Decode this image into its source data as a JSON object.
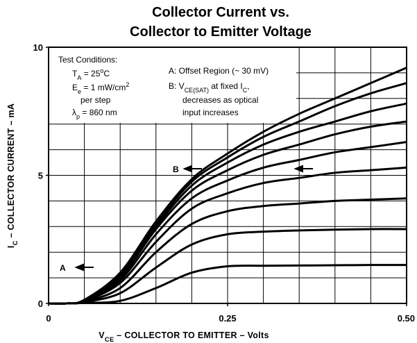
{
  "chart_data": {
    "type": "line",
    "title": [
      "Collector Current vs.",
      "Collector to Emitter Voltage"
    ],
    "xlabel": [
      {
        "text": "V"
      },
      {
        "text": "CE",
        "shift": "sub"
      },
      {
        "text": " – COLLECTOR TO EMITTER – Volts"
      }
    ],
    "ylabel": [
      {
        "text": "I"
      },
      {
        "text": "C",
        "shift": "sub"
      },
      {
        "text": " – COLLECTOR CURRENT – mA"
      }
    ],
    "xlim": [
      0,
      0.5
    ],
    "ylim": [
      0,
      10
    ],
    "xticks": [
      0,
      0.25,
      {
        "value": 0.5,
        "label": "0.50"
      }
    ],
    "yticks": [
      0,
      5,
      10
    ],
    "xgrid": [
      0.05,
      0.1,
      0.15,
      0.2,
      0.25,
      0.3,
      0.35,
      0.4,
      0.45
    ],
    "ygrid": [
      1,
      2,
      3,
      4,
      5,
      6,
      7,
      8,
      9
    ],
    "x": [
      0,
      0.025,
      0.05,
      0.1,
      0.15,
      0.2,
      0.25,
      0.3,
      0.35,
      0.4,
      0.45,
      0.5
    ],
    "series": [
      {
        "color": "#000000",
        "values": [
          0,
          0,
          0.02,
          0.1,
          0.6,
          1.2,
          1.45,
          1.47,
          1.48,
          1.49,
          1.5,
          1.5
        ]
      },
      {
        "color": "#000000",
        "values": [
          0,
          0,
          0.05,
          0.4,
          1.4,
          2.3,
          2.7,
          2.8,
          2.85,
          2.88,
          2.9,
          2.9
        ]
      },
      {
        "color": "#000000",
        "values": [
          0,
          0,
          0.07,
          0.6,
          2.0,
          3.1,
          3.6,
          3.8,
          3.9,
          4.0,
          4.05,
          4.1
        ]
      },
      {
        "color": "#000000",
        "values": [
          0,
          0,
          0.09,
          0.8,
          2.4,
          3.7,
          4.3,
          4.7,
          4.9,
          5.1,
          5.2,
          5.3
        ]
      },
      {
        "color": "#000000",
        "values": [
          0,
          0,
          0.1,
          0.9,
          2.7,
          4.1,
          4.8,
          5.3,
          5.6,
          5.9,
          6.1,
          6.3
        ]
      },
      {
        "color": "#000000",
        "values": [
          0,
          0,
          0.11,
          1.0,
          2.9,
          4.4,
          5.2,
          5.8,
          6.2,
          6.6,
          6.9,
          7.1
        ]
      },
      {
        "color": "#000000",
        "values": [
          0,
          0,
          0.12,
          1.1,
          3.0,
          4.6,
          5.5,
          6.2,
          6.7,
          7.1,
          7.5,
          7.8
        ]
      },
      {
        "color": "#000000",
        "values": [
          0,
          0,
          0.13,
          1.15,
          3.1,
          4.75,
          5.7,
          6.5,
          7.1,
          7.7,
          8.2,
          8.6
        ]
      },
      {
        "color": "#000000",
        "values": [
          0,
          0,
          0.14,
          1.2,
          3.2,
          4.85,
          5.85,
          6.7,
          7.4,
          8.0,
          8.6,
          9.2
        ]
      }
    ],
    "annotations": [
      {
        "lines": [
          [
            {
              "text": "Test Conditions:"
            }
          ],
          [
            {
              "text": "T"
            },
            {
              "text": "A",
              "shift": "sub"
            },
            {
              "text": " = 25"
            },
            {
              "text": "o",
              "shift": "super"
            },
            {
              "text": "C"
            }
          ],
          [
            {
              "text": "E"
            },
            {
              "text": "e",
              "shift": "sub"
            },
            {
              "text": " = 1 mW/cm"
            },
            {
              "text": "2",
              "shift": "super"
            }
          ],
          [
            {
              "text": "per step"
            }
          ],
          [
            {
              "text": "λ"
            },
            {
              "text": "p",
              "shift": "sub"
            },
            {
              "text": " = 860 nm"
            }
          ]
        ]
      },
      {
        "lines": [
          [
            {
              "text": "A:  Offset Region (~ 30 mV)"
            }
          ]
        ]
      },
      {
        "lines": [
          [
            {
              "text": "B:  V"
            },
            {
              "text": "CE(SAT)",
              "shift": "sub"
            },
            {
              "text": " at fixed I"
            },
            {
              "text": "C",
              "shift": "sub"
            },
            {
              "text": ","
            }
          ],
          [
            {
              "text": "decreases as optical"
            }
          ],
          [
            {
              "text": "input increases"
            }
          ]
        ]
      },
      {
        "lines": [
          [
            {
              "text": "A"
            }
          ]
        ]
      },
      {
        "lines": [
          [
            {
              "text": "B"
            }
          ]
        ]
      }
    ]
  }
}
